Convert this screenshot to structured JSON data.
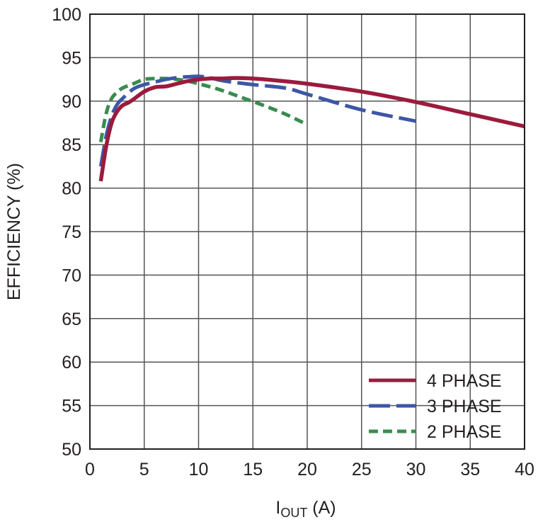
{
  "chart_data": {
    "type": "line",
    "xlabel": {
      "main": "I",
      "sub": "OUT",
      "unit": " (A)"
    },
    "ylabel": "EFFICIENCY (%)",
    "xlim": [
      0,
      40
    ],
    "ylim": [
      50,
      100
    ],
    "xticks": [
      0,
      5,
      10,
      15,
      20,
      25,
      30,
      35,
      40
    ],
    "yticks": [
      50,
      55,
      60,
      65,
      70,
      75,
      80,
      85,
      90,
      95,
      100
    ],
    "grid": true,
    "legend_position": "bottom-right",
    "series": [
      {
        "name": "4 PHASE",
        "color": "#9b1b3c",
        "dash": "solid",
        "x": [
          1,
          1.5,
          2,
          2.5,
          3,
          3.5,
          4,
          5,
          6,
          7,
          8,
          9,
          10,
          11,
          12,
          13,
          14,
          15,
          17,
          20,
          25,
          30,
          35,
          40
        ],
        "y": [
          80.8,
          84.8,
          87.5,
          88.8,
          89.5,
          89.8,
          90.2,
          91.1,
          91.6,
          91.7,
          92.0,
          92.3,
          92.5,
          92.6,
          92.6,
          92.65,
          92.65,
          92.6,
          92.4,
          92.0,
          91.1,
          89.9,
          88.5,
          87.1
        ]
      },
      {
        "name": "3 PHASE",
        "color": "#3d57a5",
        "dash": "long-dash",
        "x": [
          1,
          1.5,
          2,
          2.5,
          3,
          4,
          5,
          6,
          7,
          8,
          9,
          10,
          11,
          12,
          13,
          15,
          18,
          20,
          25,
          30
        ],
        "y": [
          82.5,
          86.0,
          88.3,
          89.6,
          90.3,
          91.4,
          91.9,
          92.2,
          92.5,
          92.7,
          92.8,
          92.85,
          92.7,
          92.4,
          92.2,
          91.9,
          91.5,
          90.8,
          89.0,
          87.7
        ]
      },
      {
        "name": "2 PHASE",
        "color": "#3a8b4f",
        "dash": "short-dash",
        "x": [
          1,
          1.5,
          2,
          2.5,
          3,
          4,
          5,
          6,
          7,
          8,
          9,
          10,
          12,
          14,
          16,
          18,
          20
        ],
        "y": [
          85.3,
          88.6,
          90.3,
          91.0,
          91.5,
          92.0,
          92.5,
          92.6,
          92.6,
          92.5,
          92.3,
          92.0,
          91.3,
          90.4,
          89.5,
          88.5,
          87.3
        ]
      }
    ]
  }
}
